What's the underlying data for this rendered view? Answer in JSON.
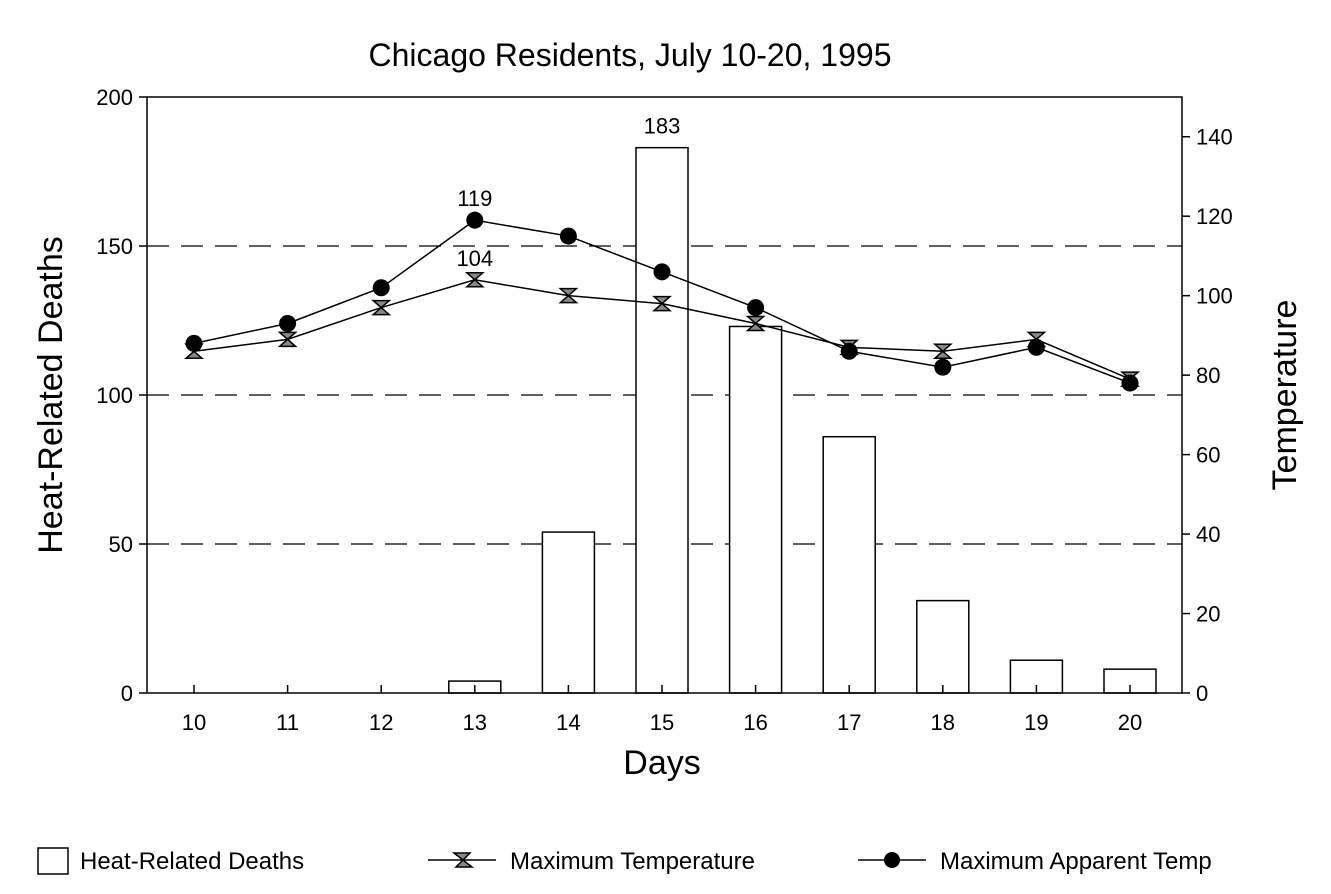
{
  "chart_data": {
    "type": "bar",
    "title": "Chicago Residents, July 10-20, 1995",
    "xlabel": "Days",
    "ylabel_left": "Heat-Related Deaths",
    "ylabel_right": "Temperature",
    "categories": [
      "10",
      "11",
      "12",
      "13",
      "14",
      "15",
      "16",
      "17",
      "18",
      "19",
      "20"
    ],
    "ylim_left": [
      0,
      200
    ],
    "yticks_left": [
      "0",
      "50",
      "100",
      "150",
      "200"
    ],
    "ylim_right": [
      0,
      150
    ],
    "yticks_right": [
      "0",
      "20",
      "40",
      "60",
      "80",
      "100",
      "120",
      "140"
    ],
    "grid": "dashed horizontal at 50, 100, 150 deaths",
    "legend_position": "bottom",
    "series": [
      {
        "name": "Heat-Related Deaths",
        "kind": "bar",
        "axis": "left",
        "values": [
          0,
          0,
          0,
          4,
          54,
          183,
          123,
          86,
          31,
          11,
          8
        ]
      },
      {
        "name": "Maximum Temperature",
        "kind": "line",
        "marker": "hourglass",
        "axis": "right",
        "values": [
          86,
          89,
          97,
          104,
          100,
          98,
          93,
          87,
          86,
          89,
          79
        ]
      },
      {
        "name": "Maximum Apparent Temp",
        "kind": "line",
        "marker": "circle",
        "axis": "right",
        "values": [
          88,
          93,
          102,
          119,
          115,
          106,
          97,
          86,
          82,
          87,
          78
        ]
      }
    ],
    "annotations": [
      {
        "text": "183",
        "series": 0,
        "index": 5
      },
      {
        "text": "119",
        "series": 2,
        "index": 3
      },
      {
        "text": "104",
        "series": 1,
        "index": 3
      }
    ],
    "colors": {
      "ink": "#000000",
      "bar_fill": "#ffffff",
      "marker_fill": "#000000"
    }
  }
}
